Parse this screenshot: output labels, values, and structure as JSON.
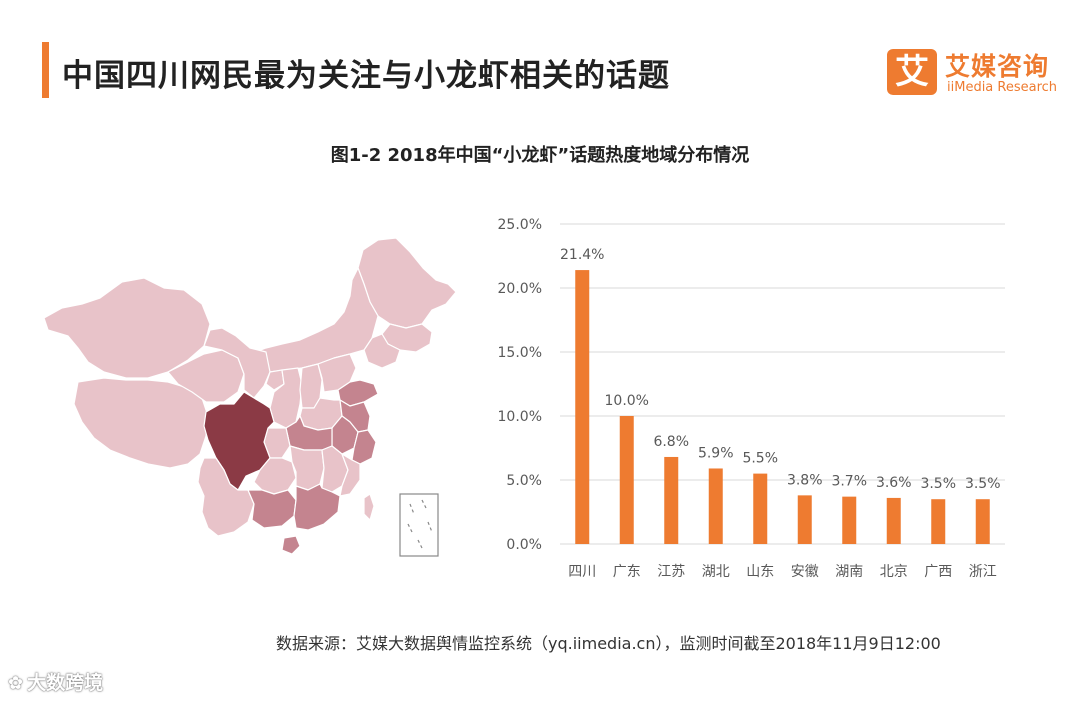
{
  "header": {
    "title": "中国四川网民最为关注与小龙虾相关的话题"
  },
  "logo": {
    "badge": "艾",
    "name_cn": "艾媒咨询",
    "name_en": "iiMedia Research"
  },
  "chart_data": {
    "type": "bar",
    "title": "图1-2 2018年中国“小龙虾”话题热度地域分布情况",
    "categories": [
      "四川",
      "广东",
      "江苏",
      "湖北",
      "山东",
      "安徽",
      "湖南",
      "北京",
      "广西",
      "浙江"
    ],
    "values": [
      21.4,
      10.0,
      6.8,
      5.9,
      5.5,
      3.8,
      3.7,
      3.6,
      3.5,
      3.5
    ],
    "value_labels": [
      "21.4%",
      "10.0%",
      "6.8%",
      "5.9%",
      "5.5%",
      "3.8%",
      "3.7%",
      "3.6%",
      "3.5%",
      "3.5%"
    ],
    "yticks": [
      "0.0%",
      "5.0%",
      "10.0%",
      "15.0%",
      "20.0%",
      "25.0%"
    ],
    "ylim": [
      0,
      25
    ],
    "ystep": 5,
    "grid": true,
    "bar_color": "#ee7b30"
  },
  "map": {
    "region": "中国",
    "highlight": "四川",
    "highlight_color": "#8b3a45",
    "mid_color": "#c4848f",
    "light_color": "#e8c3c9"
  },
  "source": {
    "text": "数据来源：艾媒大数据舆情监控系统（yq.iimedia.cn），监测时间截至2018年11月9日12:00"
  },
  "watermark": {
    "text": "大数跨境"
  },
  "colors": {
    "accent": "#ee7b30",
    "grid": "#d9d9d9",
    "axis_text": "#595959"
  }
}
